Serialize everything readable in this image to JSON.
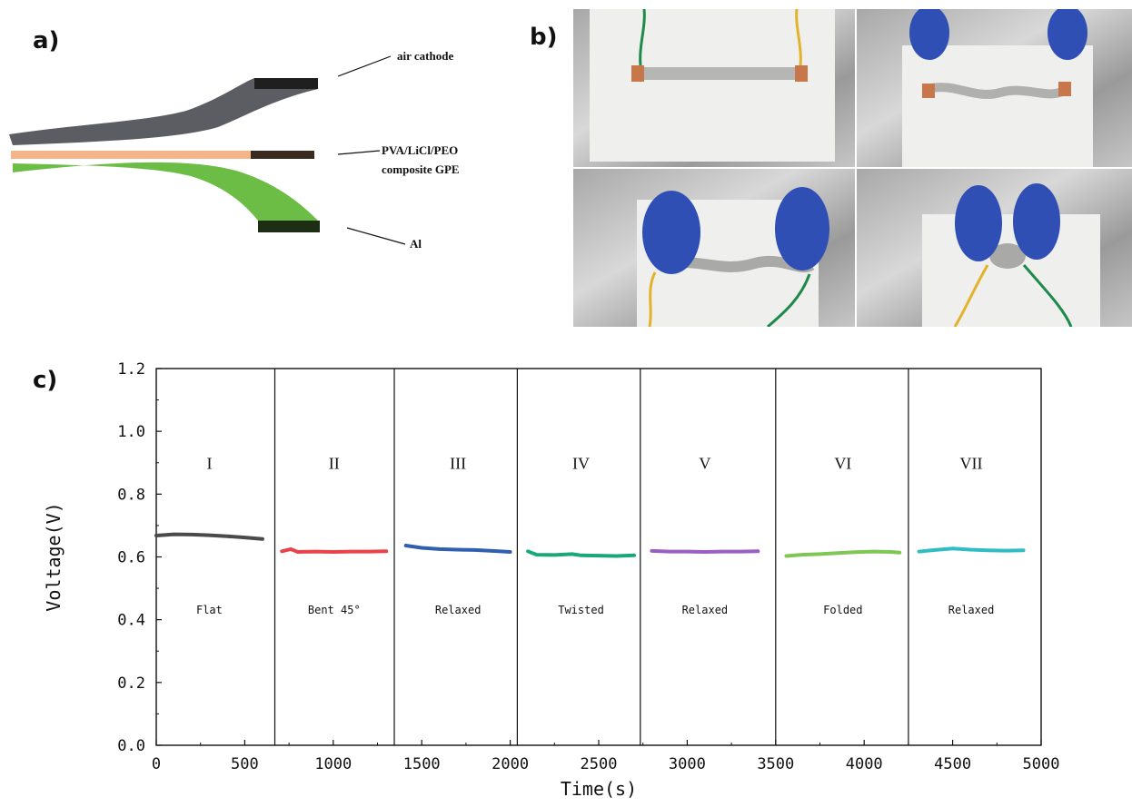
{
  "panels": {
    "a": "a)",
    "b": "b)",
    "c": "c)"
  },
  "schematic": {
    "layers": {
      "top": "air cathode",
      "middle_line1": "PVA/LiCl/PEO",
      "middle_line2": "composite GPE",
      "bottom": "Al"
    },
    "colors": {
      "cathode": "#5b5d62",
      "electrolyte": "#f5b58b",
      "anode": "#6cbd45",
      "edge": "#1f1f1f"
    }
  },
  "photos": {
    "glove_color": "#2f4fb5",
    "clip_colors": [
      "#1e8a4a",
      "#e2b22a"
    ]
  },
  "chart_data": {
    "type": "line",
    "title": "",
    "xlabel": "Time(s)",
    "ylabel": "Voltage(V)",
    "xlim": [
      0,
      5000
    ],
    "ylim": [
      0,
      1.2
    ],
    "xticks": [
      0,
      500,
      1000,
      1500,
      2000,
      2500,
      3000,
      3500,
      4000,
      4500,
      5000
    ],
    "yticks": [
      "0.0",
      "0.2",
      "0.4",
      "0.6",
      "0.8",
      "1.0",
      "1.2"
    ],
    "xtick_labels": [
      "0",
      "500",
      "1000",
      "1500",
      "2000",
      "2500",
      "3000",
      "3500",
      "4000",
      "4500",
      "5000"
    ],
    "separators": [
      670,
      1345,
      2040,
      2735,
      3500,
      4250
    ],
    "grid": false,
    "series": [
      {
        "roman": "I",
        "state": "Flat",
        "color": "#4a4a4a",
        "x": [
          0,
          100,
          200,
          300,
          400,
          500,
          600
        ],
        "y": [
          0.668,
          0.672,
          0.671,
          0.669,
          0.666,
          0.662,
          0.657
        ]
      },
      {
        "roman": "II",
        "state": "Bent 45°",
        "color": "#e8434b",
        "x": [
          710,
          760,
          800,
          900,
          1000,
          1100,
          1200,
          1300
        ],
        "y": [
          0.618,
          0.625,
          0.616,
          0.617,
          0.616,
          0.617,
          0.617,
          0.618
        ]
      },
      {
        "roman": "III",
        "state": "Relaxed",
        "color": "#2f5fae",
        "x": [
          1410,
          1500,
          1600,
          1700,
          1800,
          1900,
          2000
        ],
        "y": [
          0.636,
          0.629,
          0.625,
          0.623,
          0.622,
          0.619,
          0.616
        ]
      },
      {
        "roman": "IV",
        "state": "Twisted",
        "color": "#1aa879",
        "x": [
          2100,
          2150,
          2250,
          2350,
          2400,
          2500,
          2600,
          2700
        ],
        "y": [
          0.618,
          0.607,
          0.606,
          0.609,
          0.605,
          0.604,
          0.603,
          0.605
        ]
      },
      {
        "roman": "V",
        "state": "Relaxed",
        "color": "#9a5fc0",
        "x": [
          2800,
          2900,
          3000,
          3100,
          3200,
          3300,
          3400
        ],
        "y": [
          0.619,
          0.617,
          0.617,
          0.616,
          0.617,
          0.617,
          0.618
        ]
      },
      {
        "roman": "VI",
        "state": "Folded",
        "color": "#7fc655",
        "x": [
          3560,
          3650,
          3750,
          3850,
          3950,
          4050,
          4150,
          4200
        ],
        "y": [
          0.603,
          0.607,
          0.609,
          0.612,
          0.615,
          0.617,
          0.616,
          0.614
        ]
      },
      {
        "roman": "VII",
        "state": "Relaxed",
        "color": "#2fbcc3",
        "x": [
          4310,
          4400,
          4500,
          4600,
          4700,
          4800,
          4900
        ],
        "y": [
          0.617,
          0.622,
          0.627,
          0.623,
          0.621,
          0.62,
          0.621
        ]
      }
    ]
  }
}
